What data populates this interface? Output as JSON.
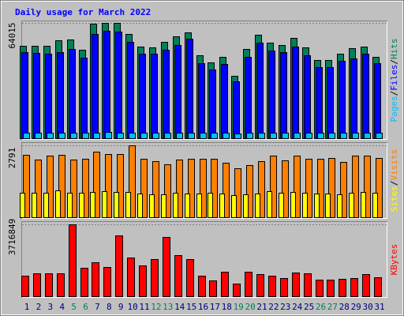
{
  "title": "Daily usage for March 2022",
  "legend_separator": "/",
  "chart_data": [
    {
      "type": "bar",
      "ylim": [
        0,
        64015
      ],
      "yticks": [
        64015
      ],
      "series": [
        {
          "name": "Hits",
          "color": "#00805c",
          "values": [
            51400,
            51400,
            51400,
            54440,
            54870,
            49210,
            63580,
            64015,
            63900,
            57920,
            50950,
            50520,
            53570,
            56615,
            58790,
            46160,
            42240,
            45290,
            34840,
            49650,
            57490,
            53130,
            51820,
            55740,
            50520,
            43550,
            43550,
            47030,
            50080,
            50950,
            45290
          ]
        },
        {
          "name": "Files",
          "color": "#0000ff",
          "values": [
            47900,
            47470,
            47030,
            47900,
            49650,
            44860,
            57920,
            59660,
            59230,
            53570,
            47030,
            47030,
            49210,
            51820,
            55310,
            41810,
            38320,
            41370,
            31790,
            45290,
            53130,
            48780,
            47900,
            50950,
            46160,
            39630,
            39630,
            43110,
            44420,
            47030,
            41810
          ]
        },
        {
          "name": "Pages",
          "color": "#00c0ff",
          "values": [
            3500,
            3400,
            3500,
            3600,
            3500,
            3300,
            3700,
            3800,
            3700,
            3600,
            3400,
            3400,
            3300,
            3600,
            3500,
            3400,
            3300,
            3300,
            3200,
            3400,
            3600,
            3500,
            3400,
            3700,
            3500,
            3300,
            3300,
            3400,
            3500,
            3600,
            3400
          ]
        }
      ]
    },
    {
      "type": "bar",
      "ylim": [
        0,
        2791
      ],
      "yticks": [
        2791
      ],
      "series": [
        {
          "name": "Visits",
          "color": "#ff8000",
          "values": [
            2427,
            2245,
            2397,
            2427,
            2245,
            2275,
            2548,
            2457,
            2457,
            2791,
            2275,
            2184,
            2063,
            2245,
            2275,
            2275,
            2275,
            2124,
            1911,
            2033,
            2184,
            2397,
            2215,
            2397,
            2275,
            2275,
            2306,
            2154,
            2397,
            2397,
            2306
          ]
        },
        {
          "name": "Sites",
          "color": "#ffff00",
          "values": [
            960,
            970,
            960,
            1060,
            970,
            960,
            1000,
            1030,
            1000,
            1000,
            950,
            920,
            900,
            960,
            940,
            950,
            960,
            940,
            880,
            910,
            950,
            1030,
            970,
            1000,
            960,
            940,
            950,
            920,
            980,
            990,
            960
          ]
        }
      ]
    },
    {
      "type": "bar",
      "ylim": [
        0,
        3716849
      ],
      "yticks": [
        3716849
      ],
      "categories": [
        "1",
        "2",
        "3",
        "4",
        "5",
        "6",
        "7",
        "8",
        "9",
        "10",
        "11",
        "12",
        "13",
        "14",
        "15",
        "16",
        "17",
        "18",
        "19",
        "20",
        "21",
        "22",
        "23",
        "24",
        "25",
        "26",
        "27",
        "28",
        "29",
        "30",
        "31"
      ],
      "category_colors": [
        "#000080",
        "#000080",
        "#000080",
        "#000080",
        "#00805c",
        "#00805c",
        "#000080",
        "#000080",
        "#000080",
        "#000080",
        "#000080",
        "#00805c",
        "#00805c",
        "#000080",
        "#000080",
        "#000080",
        "#000080",
        "#000080",
        "#00805c",
        "#00805c",
        "#000080",
        "#000080",
        "#000080",
        "#000080",
        "#000080",
        "#00805c",
        "#00805c",
        "#000080",
        "#000080",
        "#000080",
        "#000080"
      ],
      "series": [
        {
          "name": "KBytes",
          "color": "#ff0000",
          "values": [
            1090800,
            1212000,
            1212000,
            1212000,
            3716849,
            1494800,
            1777600,
            1535200,
            3151200,
            2020000,
            1616000,
            1939200,
            3070400,
            2141200,
            1939200,
            1090800,
            848400,
            1292800,
            686800,
            1292800,
            1171600,
            1090800,
            969600,
            1252400,
            1212000,
            888800,
            888800,
            929200,
            969600,
            1171600,
            1010000
          ]
        }
      ]
    }
  ]
}
